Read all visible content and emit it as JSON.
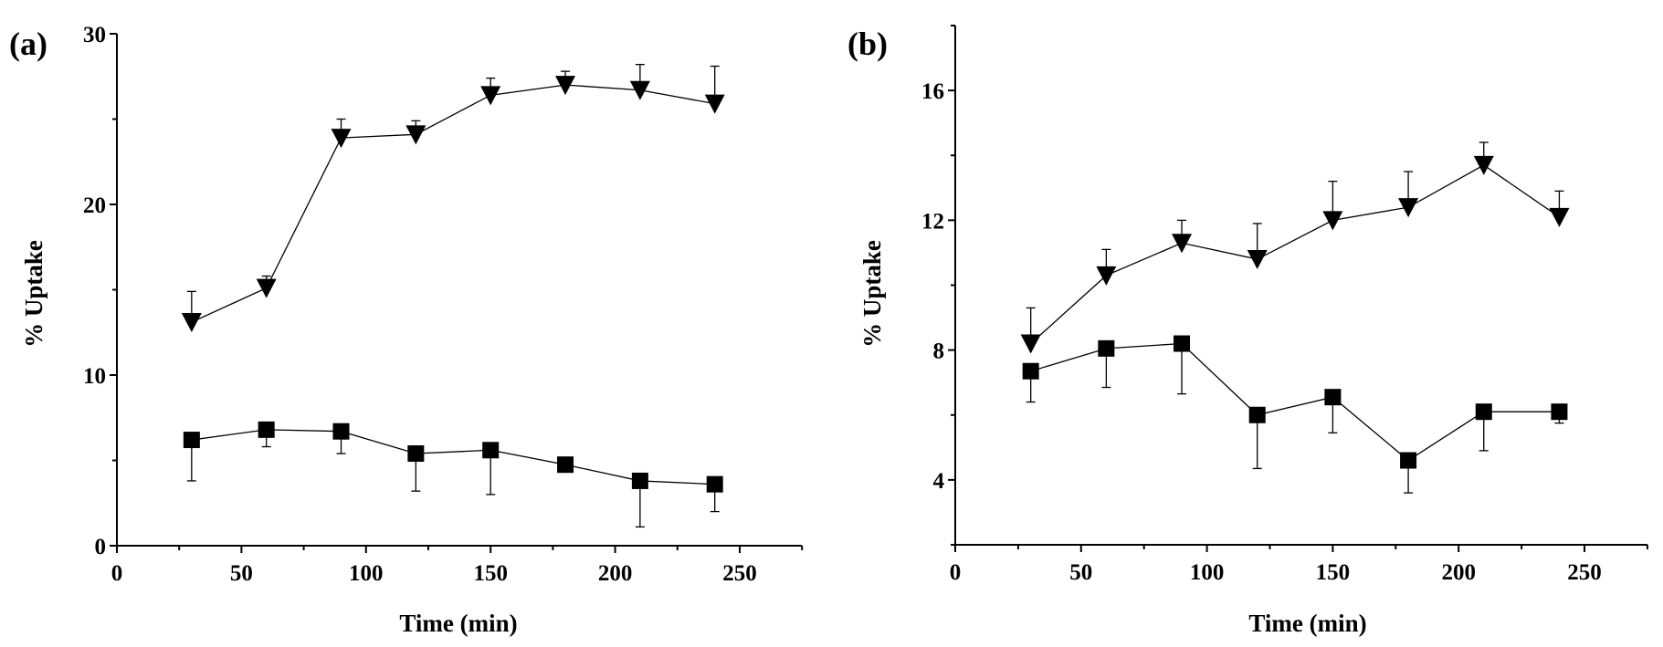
{
  "chart_data": [
    {
      "type": "line",
      "panel_label": "(a)",
      "xlabel": "Time  (min)",
      "ylabel": "% Uptake",
      "xlim": [
        0,
        275
      ],
      "ylim": [
        0,
        30
      ],
      "xticks": [
        0,
        50,
        100,
        150,
        200,
        250
      ],
      "yticks": [
        0,
        10,
        20,
        30
      ],
      "x_minor_step": 25,
      "y_minor_step": 5,
      "grid": false,
      "x": [
        30,
        60,
        90,
        120,
        150,
        180,
        210,
        240
      ],
      "series": [
        {
          "name": "triangle",
          "marker": "triangle-down",
          "error_direction": "up",
          "values": [
            13.1,
            15.1,
            23.9,
            24.1,
            26.4,
            27.0,
            26.7,
            25.9
          ],
          "error": [
            1.8,
            0.7,
            1.1,
            0.8,
            1.0,
            0.8,
            1.5,
            2.2
          ]
        },
        {
          "name": "square",
          "marker": "square",
          "error_direction": "down",
          "values": [
            6.2,
            6.8,
            6.7,
            5.4,
            5.6,
            4.75,
            3.8,
            3.6
          ],
          "error": [
            2.4,
            1.0,
            1.3,
            2.2,
            2.6,
            0,
            2.7,
            1.6
          ]
        }
      ]
    },
    {
      "type": "line",
      "panel_label": "(b)",
      "xlabel": "Time  (min)",
      "ylabel": "% Uptake",
      "xlim": [
        0,
        275
      ],
      "ylim": [
        2,
        18
      ],
      "xticks": [
        0,
        50,
        100,
        150,
        200,
        250
      ],
      "yticks": [
        4,
        8,
        12,
        16
      ],
      "x_minor_step": 25,
      "y_minor_step": 2,
      "grid": false,
      "x": [
        30,
        60,
        90,
        120,
        150,
        180,
        210,
        240
      ],
      "series": [
        {
          "name": "triangle",
          "marker": "triangle-down",
          "error_direction": "up",
          "values": [
            8.2,
            10.3,
            11.3,
            10.8,
            12.0,
            12.4,
            13.7,
            12.1
          ],
          "error": [
            1.1,
            0.8,
            0.7,
            1.1,
            1.2,
            1.1,
            0.7,
            0.8
          ]
        },
        {
          "name": "square",
          "marker": "square",
          "error_direction": "down",
          "values": [
            7.35,
            8.05,
            8.2,
            6.0,
            6.55,
            4.6,
            6.1,
            6.1
          ],
          "error": [
            0.95,
            1.2,
            1.55,
            1.65,
            1.1,
            1.0,
            1.2,
            0.35
          ]
        }
      ]
    }
  ]
}
